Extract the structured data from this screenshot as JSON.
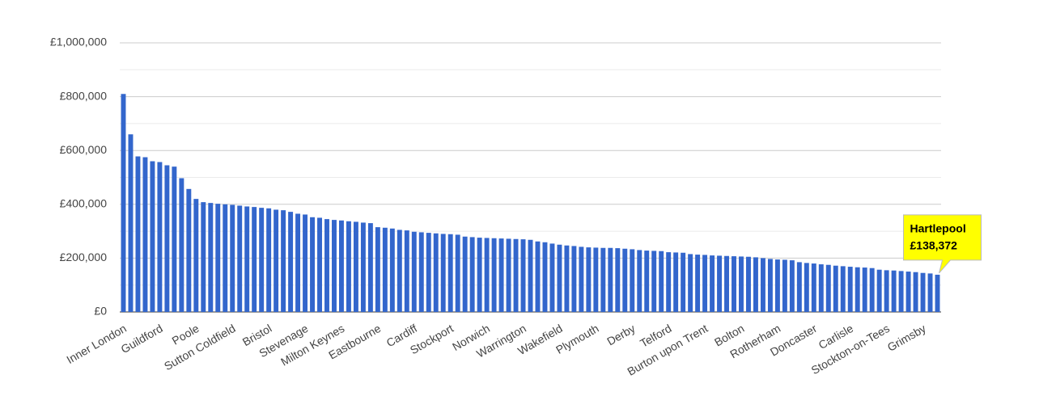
{
  "chart_data": {
    "type": "bar",
    "categories": [
      "Inner London",
      null,
      null,
      null,
      null,
      "Guildford",
      null,
      null,
      null,
      null,
      "Poole",
      null,
      null,
      null,
      null,
      "Sutton Coldfield",
      null,
      null,
      null,
      null,
      "Bristol",
      null,
      null,
      null,
      null,
      "Stevenage",
      null,
      null,
      null,
      null,
      "Milton Keynes",
      null,
      null,
      null,
      null,
      "Eastbourne",
      null,
      null,
      null,
      null,
      "Cardiff",
      null,
      null,
      null,
      null,
      "Stockport",
      null,
      null,
      null,
      null,
      "Norwich",
      null,
      null,
      null,
      null,
      "Warrington",
      null,
      null,
      null,
      null,
      "Wakefield",
      null,
      null,
      null,
      null,
      "Plymouth",
      null,
      null,
      null,
      null,
      "Derby",
      null,
      null,
      null,
      null,
      "Telford",
      null,
      null,
      null,
      null,
      "Burton upon Trent",
      null,
      null,
      null,
      null,
      "Bolton",
      null,
      null,
      null,
      null,
      "Rotherham",
      null,
      null,
      null,
      null,
      "Doncaster",
      null,
      null,
      null,
      null,
      "Carlisle",
      null,
      null,
      null,
      null,
      "Stockton-on-Tees",
      null,
      null,
      null,
      null,
      "Grimsby",
      null,
      null
    ],
    "values": [
      810000,
      660000,
      578000,
      575000,
      560000,
      557000,
      545000,
      540000,
      497000,
      457000,
      420000,
      408000,
      405000,
      402000,
      400000,
      398000,
      395000,
      392000,
      390000,
      387000,
      385000,
      380000,
      378000,
      372000,
      365000,
      362000,
      352000,
      350000,
      345000,
      342000,
      340000,
      337000,
      335000,
      332000,
      330000,
      315000,
      313000,
      310000,
      305000,
      303000,
      298000,
      296000,
      294000,
      292000,
      290000,
      289000,
      287000,
      280000,
      278000,
      276000,
      275000,
      274000,
      273000,
      272000,
      271000,
      270000,
      268000,
      262000,
      259000,
      254000,
      250000,
      247000,
      245000,
      242000,
      240000,
      239000,
      238000,
      238000,
      237000,
      235000,
      233000,
      230000,
      228000,
      227000,
      226000,
      222000,
      221000,
      220000,
      215000,
      213000,
      212000,
      210000,
      209000,
      208000,
      207000,
      206000,
      205000,
      203000,
      200000,
      197000,
      195000,
      194000,
      192000,
      185000,
      182000,
      180000,
      177000,
      175000,
      172000,
      170000,
      168000,
      166000,
      165000,
      163000,
      157000,
      155000,
      154000,
      152000,
      150000,
      148000,
      145000,
      143000,
      138372
    ],
    "color": "#3366cc",
    "ylim": [
      0,
      1000000
    ],
    "yticks": [
      {
        "value": 0,
        "label": "£0"
      },
      {
        "value": 200000,
        "label": "£200,000"
      },
      {
        "value": 400000,
        "label": "£400,000"
      },
      {
        "value": 600000,
        "label": "£600,000"
      },
      {
        "value": 800000,
        "label": "£800,000"
      },
      {
        "value": 1000000,
        "label": "£1,000,000"
      }
    ],
    "yminor": [
      100000,
      300000,
      500000,
      700000,
      900000
    ],
    "grid": true,
    "annotation": {
      "index": 112,
      "label": "Hartlepool",
      "value_label": "£138,372",
      "color": "#ffff00"
    }
  }
}
